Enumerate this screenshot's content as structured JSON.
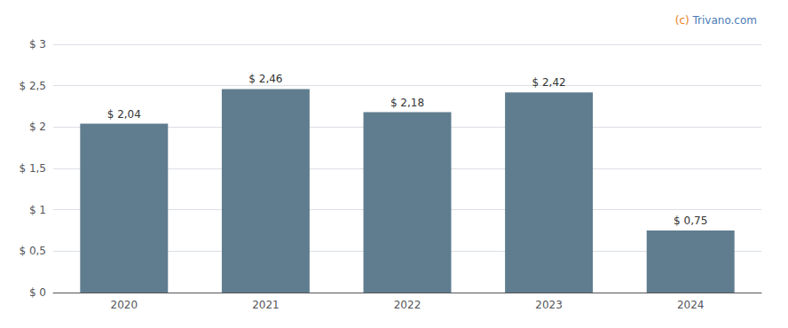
{
  "chart_data": {
    "type": "bar",
    "categories": [
      "2020",
      "2021",
      "2022",
      "2023",
      "2024"
    ],
    "values": [
      2.04,
      2.46,
      2.18,
      2.42,
      0.75
    ],
    "value_labels": [
      "$ 2,04",
      "$ 2,46",
      "$ 2,18",
      "$ 2,42",
      "$ 0,75"
    ],
    "data_labels": true,
    "color": "#607d8f",
    "ylim": [
      0,
      3.0
    ],
    "yticks": [
      {
        "value": 0,
        "label": "$ 0"
      },
      {
        "value": 0.5,
        "label": "$ 0,5"
      },
      {
        "value": 1.0,
        "label": "$ 1"
      },
      {
        "value": 1.5,
        "label": "$ 1,5"
      },
      {
        "value": 2.0,
        "label": "$ 2"
      },
      {
        "value": 2.5,
        "label": "$ 2,5"
      },
      {
        "value": 3.0,
        "label": "$ 3"
      }
    ],
    "grid": true,
    "annotations": [
      {
        "text": "(c)",
        "color": "#e8821a"
      },
      {
        "text": " Trivano.com",
        "color": "#4a7ab5"
      }
    ]
  }
}
